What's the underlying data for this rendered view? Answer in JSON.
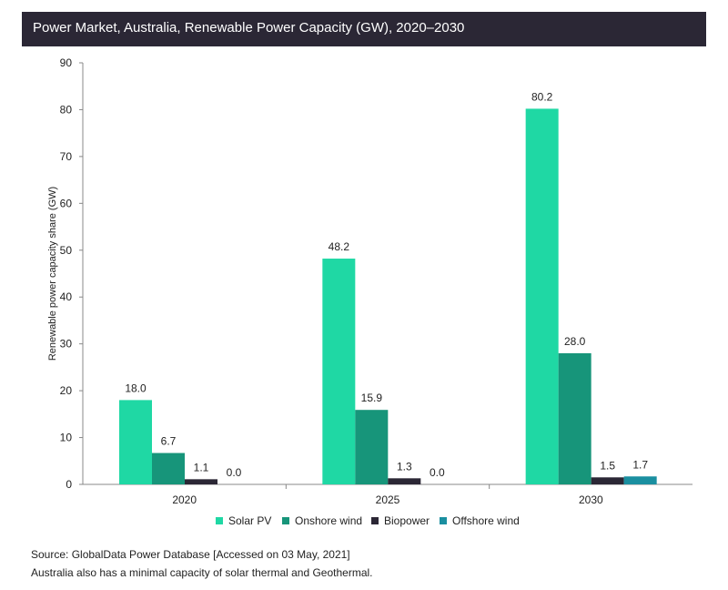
{
  "header": {
    "title": "Power Market, Australia, Renewable Power Capacity (GW), 2020–2030"
  },
  "colors": {
    "title_bg": "#2b2735",
    "solar_pv": "#1fd8a4",
    "onshore_wind": "#17957a",
    "biopower": "#2b2735",
    "offshore_wind": "#1a8fa0"
  },
  "chart_data": {
    "type": "bar",
    "title": "",
    "xlabel": "",
    "ylabel": "Renewable power capacity share (GW)",
    "ylim": [
      0,
      90
    ],
    "yticks": [
      0,
      10,
      20,
      30,
      40,
      50,
      60,
      70,
      80,
      90
    ],
    "categories": [
      "2020",
      "2025",
      "2030"
    ],
    "series": [
      {
        "name": "Solar PV",
        "values": [
          18.0,
          48.2,
          80.2
        ],
        "labels": [
          "18.0",
          "48.2",
          "80.2"
        ],
        "color": "#1fd8a4"
      },
      {
        "name": "Onshore wind",
        "values": [
          6.7,
          15.9,
          28.0
        ],
        "labels": [
          "6.7",
          "15.9",
          "28.0"
        ],
        "color": "#17957a"
      },
      {
        "name": "Biopower",
        "values": [
          1.1,
          1.3,
          1.5
        ],
        "labels": [
          "1.1",
          "1.3",
          "1.5"
        ],
        "color": "#2b2735"
      },
      {
        "name": "Offshore wind",
        "values": [
          0.0,
          0.0,
          1.7
        ],
        "labels": [
          "0.0",
          "0.0",
          "1.7"
        ],
        "color": "#1a8fa0"
      }
    ],
    "grid": false,
    "legend_position": "bottom"
  },
  "legend": [
    {
      "label": "Solar PV",
      "color": "#1fd8a4"
    },
    {
      "label": "Onshore wind",
      "color": "#17957a"
    },
    {
      "label": "Biopower",
      "color": "#2b2735"
    },
    {
      "label": "Offshore wind",
      "color": "#1a8fa0"
    }
  ],
  "footer": {
    "source": "Source: GlobalData Power Database [Accessed on 03 May, 2021]",
    "note": "Australia also has a minimal capacity of solar thermal and Geothermal."
  }
}
